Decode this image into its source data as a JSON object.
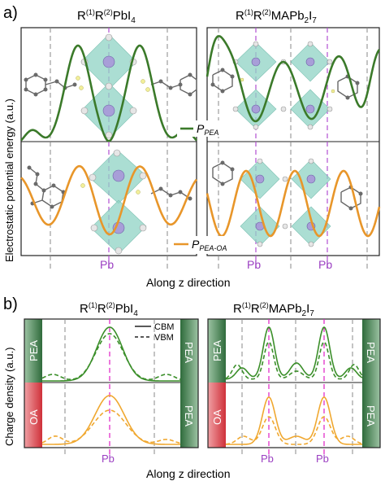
{
  "panel_a": {
    "letter": "a)",
    "title_left": "R(1)R(2)PbI4",
    "title_right": "R(1)R(2)MAPb2I7",
    "ylabel": "Electrostatic potential energy (a.u.)",
    "xlabel": "Along z direction",
    "pb_label": "Pb",
    "legend_top": "P_PEA",
    "legend_bottom": "P_PEA-OA",
    "colors": {
      "pea": "#3b7a2a",
      "oa": "#e8962a",
      "octahedra": "#8fd3c4",
      "pb_line": "#b24fd1",
      "grid_dash": "#888888"
    }
  },
  "panel_b": {
    "letter": "b)",
    "title_left": "R(1)R(2)PbI4",
    "title_right": "R(1)R(2)MAPb2I7",
    "ylabel": "Charge density (a.u.)",
    "xlabel": "Along z direction",
    "pb_label": "Pb",
    "legend": [
      "CBM",
      "VBM"
    ],
    "side_labels": {
      "top_left": "PEA",
      "top_right": "PEA",
      "bottom_left": "OA",
      "bottom_right": "PEA"
    },
    "colors": {
      "pea_bar": "#3f7a4a",
      "oa_bar": "#d9424a",
      "pea_curve": "#3b8f2a",
      "oa_curve": "#f0a830"
    }
  }
}
